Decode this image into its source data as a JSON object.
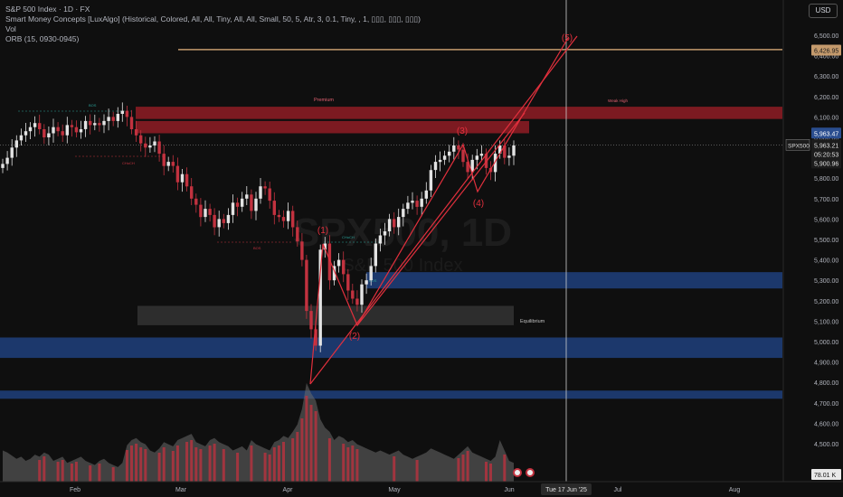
{
  "legend": {
    "title": "S&P 500 Index · 1D · FX",
    "indicator_smc": "Smart Money Concepts [LuxAlgo] (Historical, Colored, All, All, Tiny, All, All, Small, 50, 5, Atr, 3, 0.1, Tiny, , 1, ▯▯▯, ▯▯▯, ▯▯▯)",
    "indicator_vol": "Vol",
    "indicator_orb": "ORB (15, 0930-0945)"
  },
  "currency_button": "USD",
  "watermark": {
    "symbol": "SPX500, 1D",
    "name": "S&P 500 Index"
  },
  "colors": {
    "up": "#e3e3e3",
    "down": "#c2323f",
    "zone_red": "#8f1c24",
    "zone_blue": "#1e3f7c",
    "wave": "#e2303d",
    "target": "#c49a6c"
  },
  "chart_data": {
    "type": "candlestick",
    "symbol": "SPX500",
    "timeframe": "1D",
    "x_labels": [
      "Feb",
      "Mar",
      "Apr",
      "May",
      "Jun",
      "Jul",
      "Aug"
    ],
    "x_crosshair_label": "Tue 17 Jun '25",
    "ylim": [
      4350,
      6700
    ],
    "y_ticks": [
      "6,500.00",
      "6,400.00",
      "6,300.00",
      "6,200.00",
      "6,100.00",
      "6,000.00",
      "5,900.00",
      "5,800.00",
      "5,700.00",
      "5,600.00",
      "5,500.00",
      "5,400.00",
      "5,300.00",
      "5,200.00",
      "5,100.00",
      "5,000.00",
      "4,900.00",
      "4,800.00",
      "4,700.00",
      "4,600.00",
      "4,500.00"
    ],
    "price_tags": {
      "target": "6,426.95",
      "upper": "5,963.47",
      "symbol_tag": "SPX500",
      "last": "5,963.21",
      "countdown": "05:20:53",
      "lower": "5,900.96",
      "volume": "78.01 K"
    },
    "price_tag_values": {
      "target": 6426.95,
      "upper": 5963.47,
      "last": 5963.21,
      "lower": 5900.96
    },
    "closes": [
      5870,
      5900,
      5950,
      5985,
      6010,
      6030,
      6050,
      6070,
      6040,
      6000,
      6020,
      6050,
      6030,
      6010,
      6060,
      6050,
      6025,
      6040,
      6080,
      6060,
      6070,
      6060,
      6080,
      6100,
      6080,
      6115,
      6130,
      6100,
      6040,
      6010,
      5970,
      5950,
      5960,
      5980,
      5920,
      5860,
      5880,
      5860,
      5780,
      5820,
      5760,
      5700,
      5670,
      5610,
      5650,
      5620,
      5560,
      5600,
      5580,
      5620,
      5680,
      5660,
      5700,
      5720,
      5640,
      5700,
      5760,
      5750,
      5690,
      5620,
      5610,
      5590,
      5640,
      5560,
      5490,
      5400,
      5150,
      5060,
      4980,
      5450,
      5480,
      5300,
      5370,
      5400,
      5330,
      5250,
      5210,
      5180,
      5280,
      5300,
      5370,
      5480,
      5520,
      5540,
      5600,
      5560,
      5610,
      5650,
      5680,
      5690,
      5660,
      5700,
      5740,
      5840,
      5880,
      5890,
      5910,
      5930,
      5960,
      5940,
      5880,
      5830,
      5890,
      5910,
      5920,
      5850,
      5830,
      5920,
      5960,
      5900,
      5910,
      5960
    ],
    "zones": [
      {
        "label": "Premium",
        "top": 6150,
        "bottom": 6090,
        "color": "red"
      },
      {
        "label": "",
        "top": 6080,
        "bottom": 6020,
        "color": "red"
      },
      {
        "label": "Equilibrium",
        "top": 5175,
        "bottom": 5080,
        "color": "gray"
      },
      {
        "label": "",
        "top": 5340,
        "bottom": 5260,
        "color": "blue"
      },
      {
        "label": "",
        "top": 5020,
        "bottom": 4920,
        "color": "blue"
      },
      {
        "label": "",
        "top": 4760,
        "bottom": 4720,
        "color": "blue"
      }
    ],
    "small_labels": {
      "premium": "Premium",
      "weak_high": "Weak High",
      "equilibrium": "Equilibrium",
      "bos1": "BOS",
      "choch1": "CHoCH",
      "bos2": "BOS",
      "choch2": "CHoCH",
      "bos3": "BOS"
    },
    "waves": [
      {
        "label": "(1)",
        "value": 5490
      },
      {
        "label": "(2)",
        "value": 5120
      },
      {
        "label": "(3)",
        "value": 5960
      },
      {
        "label": "(4)",
        "value": 5780
      },
      {
        "label": "(5)",
        "value": 6430
      }
    ],
    "volume": [
      30,
      28,
      25,
      22,
      24,
      20,
      22,
      26,
      24,
      28,
      26,
      20,
      22,
      24,
      18,
      20,
      22,
      24,
      20,
      18,
      16,
      20,
      22,
      18,
      16,
      14,
      18,
      35,
      40,
      42,
      38,
      36,
      30,
      28,
      32,
      38,
      36,
      34,
      40,
      42,
      44,
      46,
      38,
      36,
      34,
      40,
      42,
      38,
      36,
      34,
      30,
      32,
      34,
      30,
      40,
      36,
      34,
      32,
      30,
      38,
      40,
      44,
      42,
      48,
      55,
      70,
      95,
      85,
      78,
      60,
      52,
      48,
      40,
      44,
      42,
      38,
      40,
      36,
      34,
      32,
      30,
      28,
      30,
      28,
      26,
      28,
      30,
      26,
      24,
      22,
      24,
      26,
      28,
      32,
      30,
      28,
      26,
      24,
      22,
      26,
      30,
      34,
      28,
      26,
      24,
      22,
      20,
      24,
      40,
      30,
      20,
      18
    ]
  }
}
